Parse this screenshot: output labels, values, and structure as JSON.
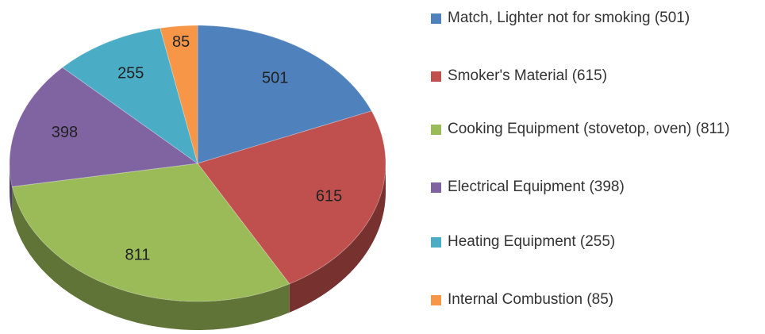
{
  "chart_data": {
    "type": "pie",
    "categories": [
      "Match, Lighter not for smoking (501)",
      "Smoker's Material (615)",
      "Cooking Equipment (stovetop, oven) (811)",
      "Electrical Equipment (398)",
      "Heating Equipment (255)",
      "Internal Combustion (85)"
    ],
    "values": [
      501,
      615,
      811,
      398,
      255,
      85
    ],
    "colors": [
      "#4f81bd",
      "#c0504d",
      "#9bbb59",
      "#8064a2",
      "#4bacc6",
      "#f79646"
    ],
    "legend": "right"
  }
}
